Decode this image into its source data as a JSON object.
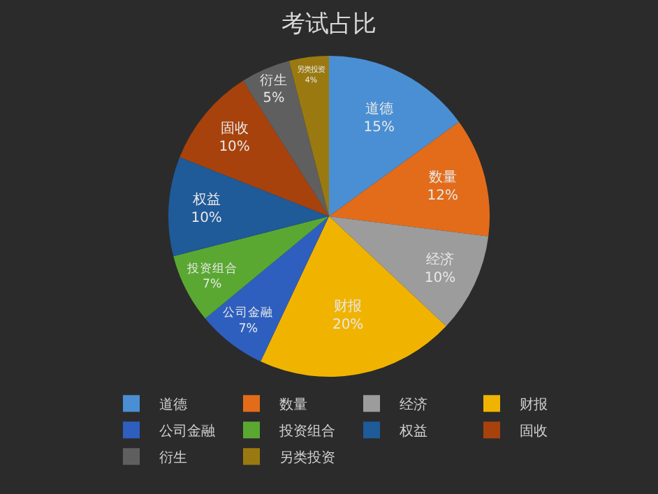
{
  "chart_data": {
    "type": "pie",
    "title": "考试占比",
    "categories": [
      "道德",
      "数量",
      "经济",
      "财报",
      "公司金融",
      "投资组合",
      "权益",
      "固收",
      "衍生",
      "另类投资"
    ],
    "values": [
      15,
      12,
      10,
      20,
      7,
      7,
      10,
      10,
      5,
      4
    ],
    "value_labels": [
      "15%",
      "12%",
      "10%",
      "20%",
      "7%",
      "7%",
      "10%",
      "10%",
      "5%",
      "4%"
    ],
    "colors": [
      "#4a8fd4",
      "#e36c1a",
      "#9c9c9c",
      "#f0b400",
      "#2e5fbf",
      "#5aa832",
      "#1f5a99",
      "#a8420c",
      "#5f5f5f",
      "#9a7a10"
    ],
    "legend": "bottom"
  }
}
